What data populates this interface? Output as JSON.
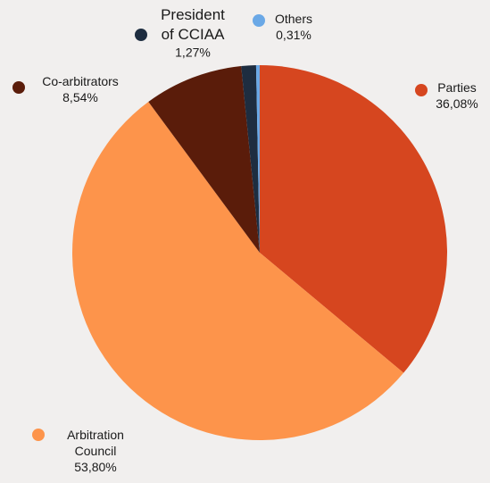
{
  "chart_data": {
    "type": "pie",
    "slices": [
      {
        "name": "Parties",
        "value_label": "36,08%",
        "value": 36.08,
        "color": "#d6461f"
      },
      {
        "name": "Arbitration Council",
        "value_label": "53,80%",
        "value": 53.8,
        "color": "#fd944b"
      },
      {
        "name": "Co-arbitrators",
        "value_label": "8,54%",
        "value": 8.54,
        "color": "#5a1c0a"
      },
      {
        "name": "President of CCIAA",
        "value_label": "1,27%",
        "value": 1.27,
        "color": "#1e2d40"
      },
      {
        "name": "Others",
        "value_label": "0,31%",
        "value": 0.31,
        "color": "#6aa8e6"
      }
    ],
    "start_angle_deg": 0,
    "direction": "clockwise",
    "legend": "labels-around-pie"
  }
}
